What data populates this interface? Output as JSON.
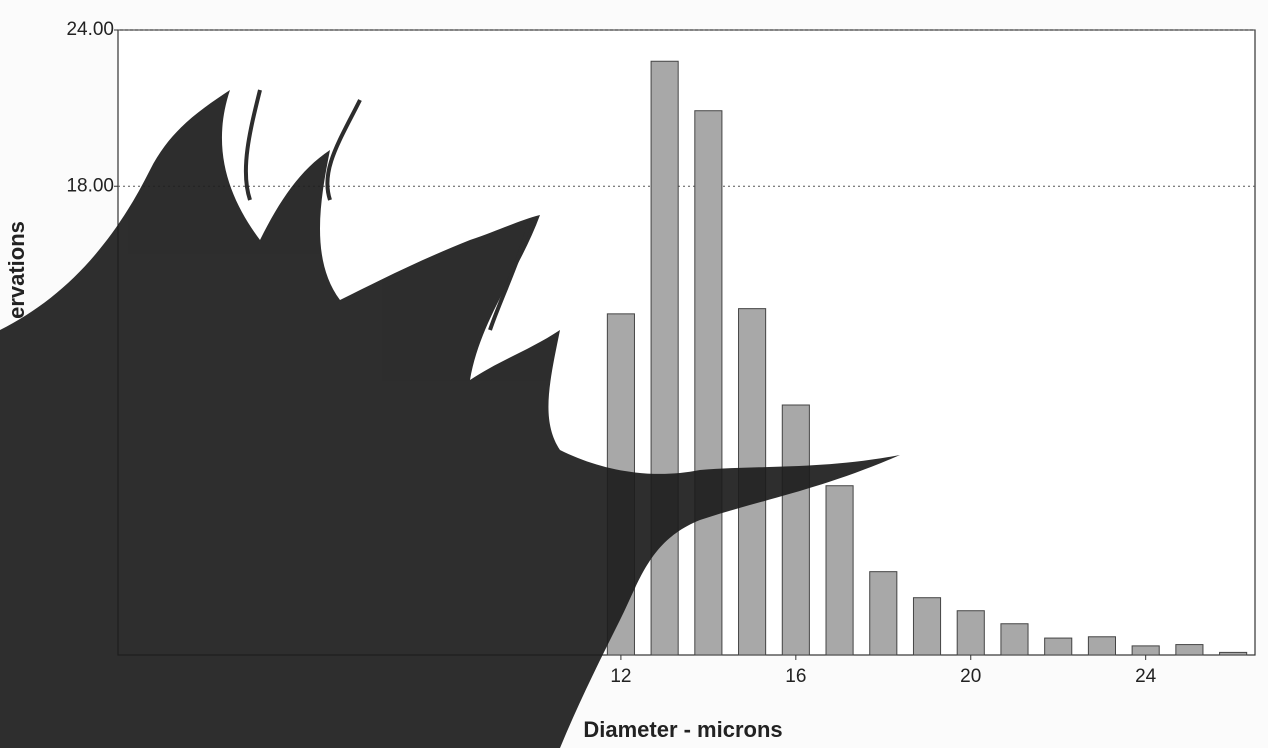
{
  "chart_data": {
    "type": "bar",
    "x_label": "Diameter - microns",
    "y_label": "ervations",
    "x": [
      12,
      13,
      14,
      15,
      16,
      17,
      18,
      19,
      20,
      21,
      22,
      23,
      24,
      25,
      26
    ],
    "values": [
      13.1,
      22.8,
      20.9,
      13.3,
      9.6,
      6.5,
      3.2,
      2.2,
      1.7,
      1.2,
      0.65,
      0.7,
      0.35,
      0.4,
      0.1
    ],
    "color": "#a8a8a8",
    "xlim": [
      0.5,
      26.5
    ],
    "xticks": [
      12,
      16,
      20,
      24
    ],
    "ylim": [
      0,
      24
    ],
    "yticks": [
      {
        "value": 18,
        "label": "18.00"
      },
      {
        "value": 24,
        "label": "24.00"
      }
    ],
    "grid": true
  }
}
